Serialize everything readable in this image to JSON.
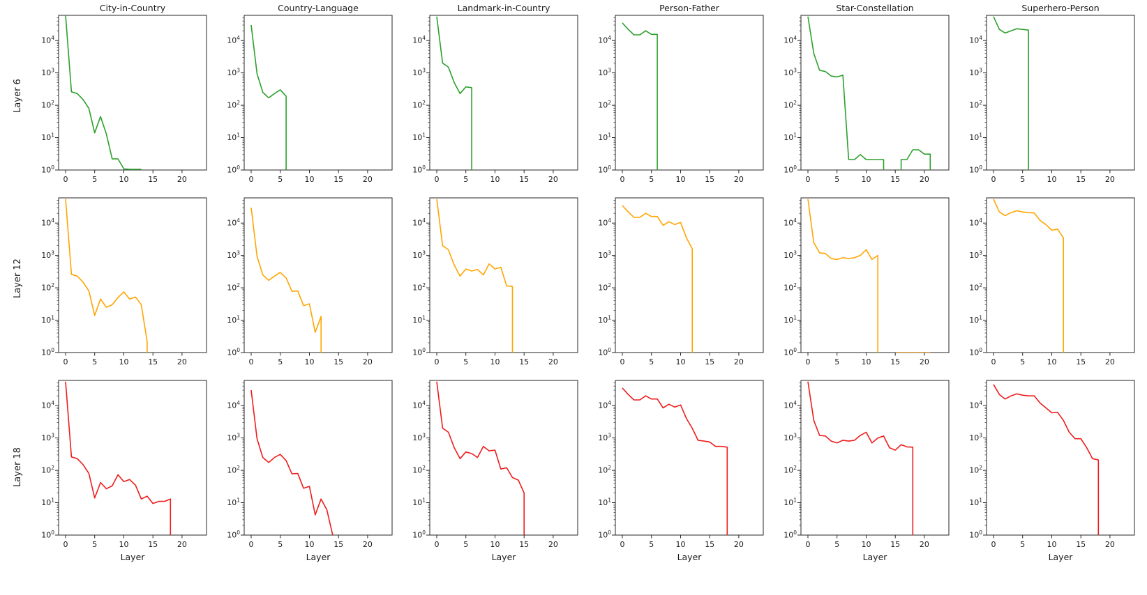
{
  "figure": {
    "background": "#ffffff",
    "col_titles": [
      "City-in-Country",
      "Country-Language",
      "Landmark-in-Country",
      "Person-Father",
      "Star-Constellation",
      "Superhero-Person"
    ],
    "row_labels": [
      "Layer 6",
      "Layer 12",
      "Layer 18"
    ],
    "xlabel": "Layer",
    "row_colors": [
      "#2ca02c",
      "#ffa500",
      "#ee1c1c"
    ]
  },
  "chart_data": {
    "type": "line",
    "yscale": "log",
    "ylim": [
      1,
      60000
    ],
    "xlim": [
      -1.2,
      24.2
    ],
    "x_ticks": [
      0,
      5,
      10,
      15,
      20
    ],
    "y_tick_exponents": [
      0,
      1,
      2,
      3,
      4
    ],
    "xlabel": "Layer",
    "grid": false,
    "note": "x = layer index 0..23; a value of 0 means the curve drops below the log axis (vertical clip line); rows = layer probed, cols = relation",
    "rows": [
      {
        "label": "Layer 6",
        "color": "#2ca02c",
        "series": [
          {
            "name": "City-in-Country",
            "values": [
              60000,
              260,
              230,
              150,
              80,
              14,
              45,
              13,
              2.2,
              2.2,
              1.08,
              1.05,
              1.05,
              1.05
            ]
          },
          {
            "name": "Country-Language",
            "values": [
              30000,
              950,
              250,
              170,
              230,
              300,
              190,
              0
            ]
          },
          {
            "name": "Landmark-in-Country",
            "values": [
              55000,
              2000,
              1500,
              500,
              230,
              370,
              350,
              0
            ]
          },
          {
            "name": "Person-Father",
            "values": [
              35000,
              22000,
              15000,
              15000,
              20000,
              15500,
              15500,
              0
            ]
          },
          {
            "name": "Star-Constellation",
            "values": [
              55000,
              4000,
              1200,
              1100,
              800,
              750,
              850,
              2.1,
              2.1,
              3,
              2.1,
              2.1,
              2.1,
              2.1,
              0,
              0,
              2.1,
              2.1,
              4.2,
              4.2,
              3.1,
              3.1,
              0
            ]
          },
          {
            "name": "Superhero-Person",
            "values": [
              55000,
              22000,
              17000,
              20000,
              23000,
              22000,
              21000,
              0
            ]
          }
        ]
      },
      {
        "label": "Layer 12",
        "color": "#ffa500",
        "series": [
          {
            "name": "City-in-Country",
            "values": [
              55000,
              260,
              230,
              150,
              80,
              14,
              45,
              25,
              30,
              50,
              75,
              45,
              52,
              30,
              2.2,
              0
            ]
          },
          {
            "name": "Country-Language",
            "values": [
              30000,
              950,
              250,
              170,
              230,
              300,
              200,
              78,
              80,
              28,
              32,
              4.2,
              13,
              0
            ]
          },
          {
            "name": "Landmark-in-Country",
            "values": [
              55000,
              2000,
              1500,
              500,
              230,
              380,
              330,
              370,
              250,
              550,
              380,
              430,
              115,
              110,
              0
            ]
          },
          {
            "name": "Person-Father",
            "values": [
              35000,
              22000,
              15000,
              15000,
              20000,
              16000,
              16000,
              8500,
              11000,
              9000,
              10500,
              3500,
              1600,
              0
            ]
          },
          {
            "name": "Star-Constellation",
            "values": [
              55000,
              2500,
              1200,
              1150,
              800,
              750,
              850,
              800,
              850,
              1000,
              1500,
              750,
              1000,
              0,
              0,
              1,
              1,
              1,
              1,
              1,
              1,
              1
            ]
          },
          {
            "name": "Superhero-Person",
            "values": [
              55000,
              22000,
              17000,
              21000,
              24000,
              22000,
              21000,
              20500,
              12000,
              9000,
              6000,
              6500,
              3500,
              0
            ]
          }
        ]
      },
      {
        "label": "Layer 18",
        "color": "#ee1c1c",
        "series": [
          {
            "name": "City-in-Country",
            "values": [
              55000,
              260,
              230,
              150,
              80,
              14,
              42,
              27,
              33,
              73,
              45,
              52,
              35,
              13,
              16,
              9.5,
              11,
              11,
              13,
              0
            ]
          },
          {
            "name": "Country-Language",
            "values": [
              30000,
              950,
              250,
              175,
              250,
              310,
              200,
              78,
              80,
              28,
              32,
              4.2,
              13,
              6,
              1
            ]
          },
          {
            "name": "Landmark-in-Country",
            "values": [
              55000,
              2000,
              1500,
              500,
              230,
              370,
              330,
              250,
              550,
              400,
              420,
              110,
              120,
              60,
              50,
              20,
              0
            ]
          },
          {
            "name": "Person-Father",
            "values": [
              35000,
              22000,
              15000,
              15000,
              20000,
              16000,
              16000,
              8500,
              11000,
              9000,
              10500,
              4000,
              2000,
              850,
              800,
              750,
              550,
              550,
              520,
              0
            ]
          },
          {
            "name": "Star-Constellation",
            "values": [
              55000,
              3500,
              1200,
              1150,
              800,
              700,
              850,
              800,
              850,
              1200,
              1500,
              700,
              1000,
              1150,
              500,
              420,
              620,
              530,
              520,
              0
            ]
          },
          {
            "name": "Superhero-Person",
            "values": [
              45000,
              22000,
              16000,
              20000,
              23000,
              21000,
              20000,
              20000,
              12000,
              8500,
              6000,
              6200,
              3500,
              1500,
              950,
              950,
              500,
              230,
              210,
              0
            ]
          }
        ]
      }
    ]
  }
}
